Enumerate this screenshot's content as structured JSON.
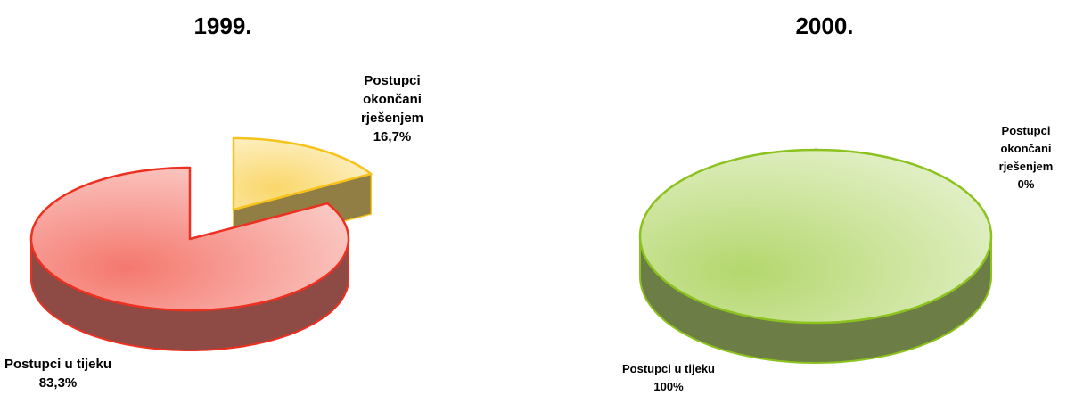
{
  "chart_data": [
    {
      "type": "pie",
      "title": "1999.",
      "categories": [
        "Postupci okončani rješenjem",
        "Postupci u tijeku"
      ],
      "values": [
        16.7,
        83.3
      ],
      "value_labels": [
        "16,7%",
        "83,3%"
      ],
      "colors": [
        "#f7c21a",
        "#ee3020"
      ]
    },
    {
      "type": "pie",
      "title": "2000.",
      "categories": [
        "Postupci okončani rješenjem",
        "Postupci u tijeku"
      ],
      "values": [
        0,
        100
      ],
      "value_labels": [
        "0%",
        "100%"
      ],
      "colors": [
        "#2f6a2a",
        "#8cc21e"
      ]
    }
  ]
}
